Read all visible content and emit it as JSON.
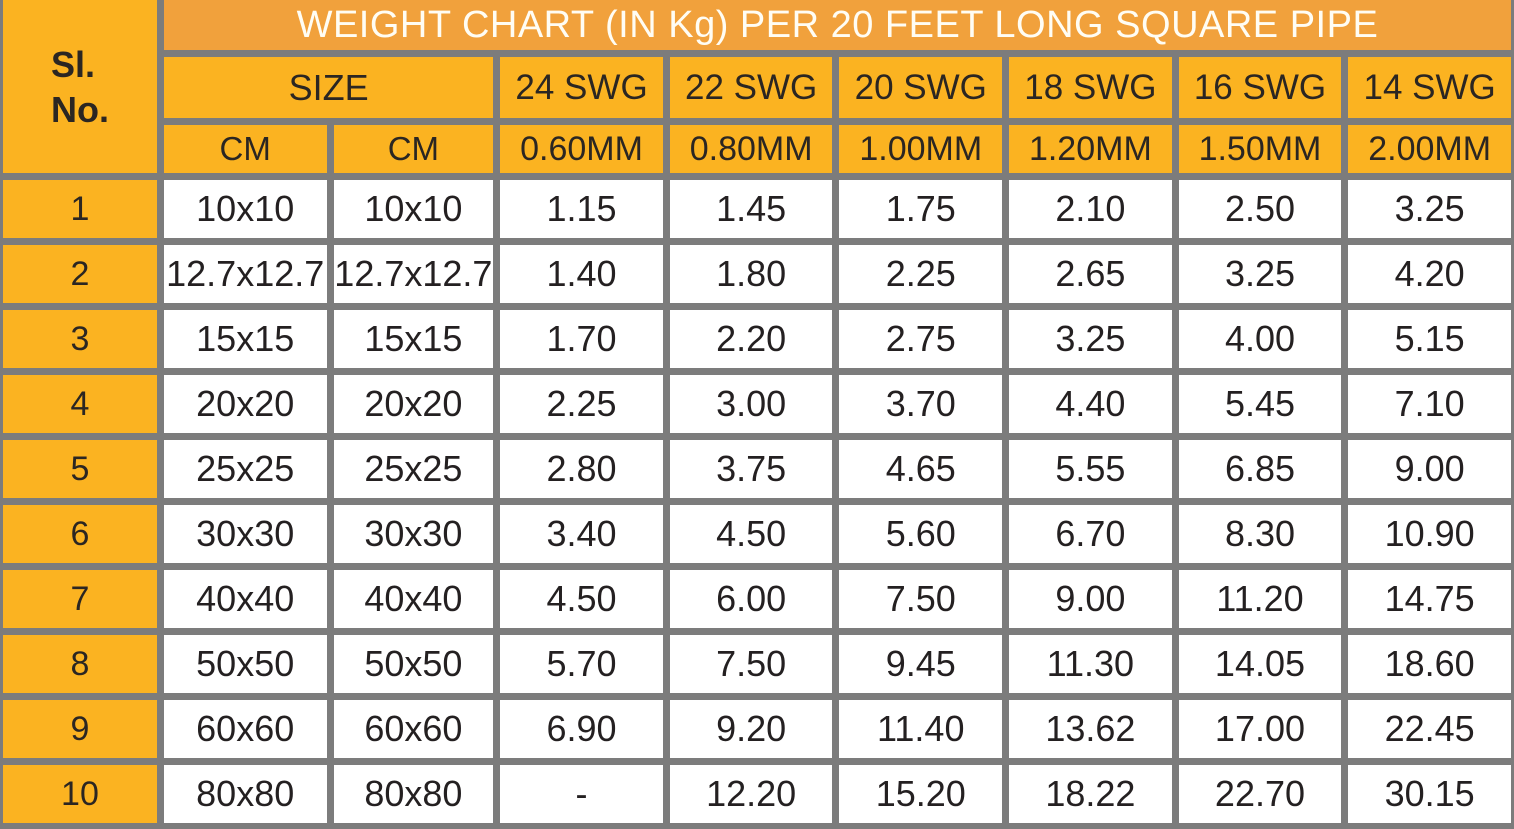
{
  "colors": {
    "title_bg": "#F1A13C",
    "header_gold_bg": "#FBB321",
    "grid_border": "#7C7C7C",
    "data_cell_bg": "#FFFFFF",
    "title_text": "#FFFDF4",
    "body_text": "#242021"
  },
  "chart_data": {
    "type": "table",
    "title": "WEIGHT CHART (IN Kg) PER 20 FEET LONG SQUARE PIPE",
    "row_header": {
      "line1": "Sl.",
      "line2": "No."
    },
    "size_header": "SIZE",
    "size_units": [
      "CM",
      "CM"
    ],
    "gauge_headers": [
      "24 SWG",
      "22 SWG",
      "20 SWG",
      "18 SWG",
      "16 SWG",
      "14 SWG"
    ],
    "thickness_headers": [
      "0.60MM",
      "0.80MM",
      "1.00MM",
      "1.20MM",
      "1.50MM",
      "2.00MM"
    ],
    "rows": [
      {
        "sl": "1",
        "cm1": "10x10",
        "cm2": "10x10",
        "values": [
          "1.15",
          "1.45",
          "1.75",
          "2.10",
          "2.50",
          "3.25"
        ]
      },
      {
        "sl": "2",
        "cm1": "12.7x12.7",
        "cm2": "12.7x12.7",
        "values": [
          "1.40",
          "1.80",
          "2.25",
          "2.65",
          "3.25",
          "4.20"
        ]
      },
      {
        "sl": "3",
        "cm1": "15x15",
        "cm2": "15x15",
        "values": [
          "1.70",
          "2.20",
          "2.75",
          "3.25",
          "4.00",
          "5.15"
        ]
      },
      {
        "sl": "4",
        "cm1": "20x20",
        "cm2": "20x20",
        "values": [
          "2.25",
          "3.00",
          "3.70",
          "4.40",
          "5.45",
          "7.10"
        ]
      },
      {
        "sl": "5",
        "cm1": "25x25",
        "cm2": "25x25",
        "values": [
          "2.80",
          "3.75",
          "4.65",
          "5.55",
          "6.85",
          "9.00"
        ]
      },
      {
        "sl": "6",
        "cm1": "30x30",
        "cm2": "30x30",
        "values": [
          "3.40",
          "4.50",
          "5.60",
          "6.70",
          "8.30",
          "10.90"
        ]
      },
      {
        "sl": "7",
        "cm1": "40x40",
        "cm2": "40x40",
        "values": [
          "4.50",
          "6.00",
          "7.50",
          "9.00",
          "11.20",
          "14.75"
        ]
      },
      {
        "sl": "8",
        "cm1": "50x50",
        "cm2": "50x50",
        "values": [
          "5.70",
          "7.50",
          "9.45",
          "11.30",
          "14.05",
          "18.60"
        ]
      },
      {
        "sl": "9",
        "cm1": "60x60",
        "cm2": "60x60",
        "values": [
          "6.90",
          "9.20",
          "11.40",
          "13.62",
          "17.00",
          "22.45"
        ]
      },
      {
        "sl": "10",
        "cm1": "80x80",
        "cm2": "80x80",
        "values": [
          "-",
          "12.20",
          "15.20",
          "18.22",
          "22.70",
          "30.15"
        ]
      }
    ]
  }
}
